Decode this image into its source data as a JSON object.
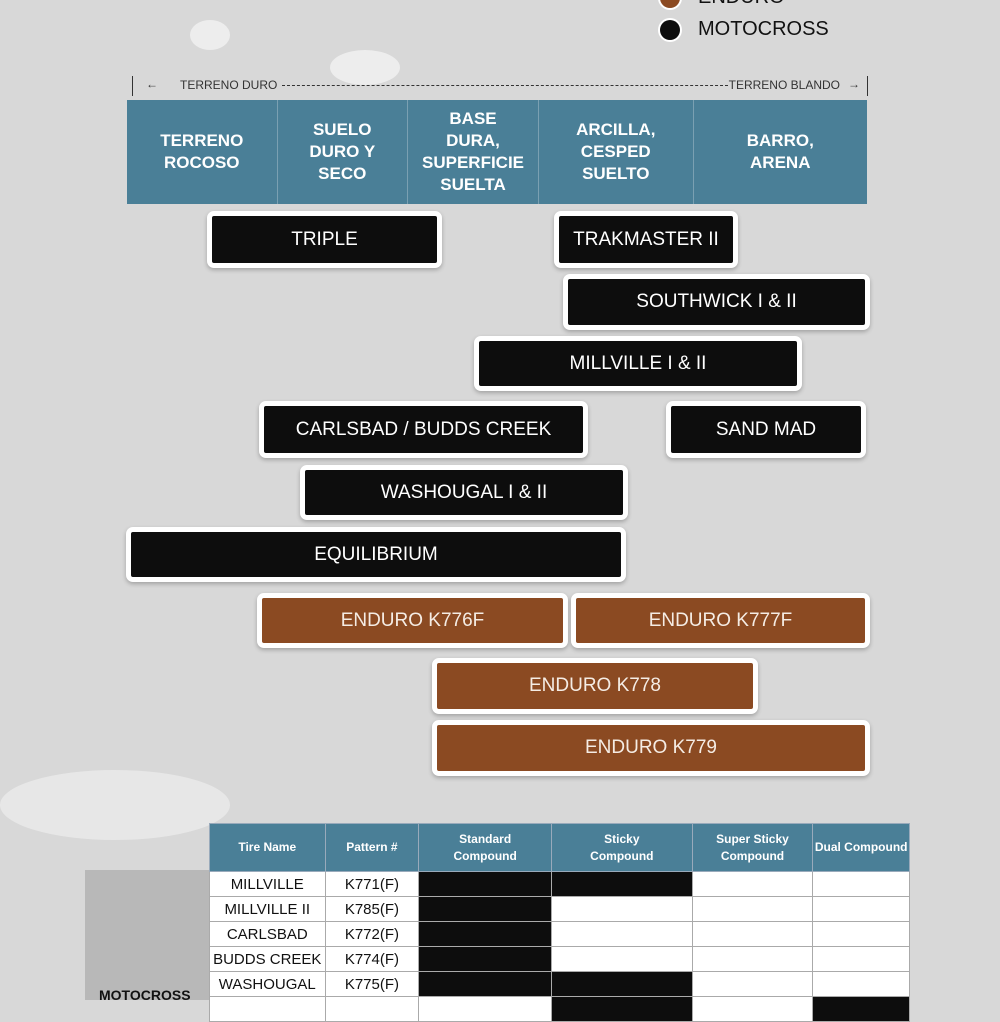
{
  "colors": {
    "header": "#4a7f97",
    "motocross": "#0d0d0d",
    "enduro": "#8b4a22",
    "background": "#d8d8d8"
  },
  "legend": [
    {
      "label": "ENDURO",
      "color": "#8b4a22"
    },
    {
      "label": "MOTOCROSS",
      "color": "#0d0d0d"
    }
  ],
  "scale": {
    "left_label": "TERRENO DURO",
    "right_label": "TERRENO BLANDO",
    "left_arrow": "←",
    "right_arrow": "→"
  },
  "terrains": [
    "TERRENO ROCOSO",
    "SUELO DURO Y SECO",
    "BASE DURA, SUPERFICIE SUELTA",
    "ARCILLA, CESPED SUELTO",
    "BARRO, ARENA"
  ],
  "tires": [
    {
      "label": "TRIPLE",
      "type": "motocross"
    },
    {
      "label": "TRAKMASTER II",
      "type": "motocross"
    },
    {
      "label": "SOUTHWICK I & II",
      "type": "motocross"
    },
    {
      "label": "MILLVILLE I & II",
      "type": "motocross"
    },
    {
      "label": "CARLSBAD / BUDDS CREEK",
      "type": "motocross"
    },
    {
      "label": "SAND MAD",
      "type": "motocross"
    },
    {
      "label": "WASHOUGAL I & II",
      "type": "motocross"
    },
    {
      "label": "EQUILIBRIUM",
      "type": "motocross"
    },
    {
      "label": "ENDURO K776F",
      "type": "enduro"
    },
    {
      "label": "ENDURO K777F",
      "type": "enduro"
    },
    {
      "label": "ENDURO K778",
      "type": "enduro"
    },
    {
      "label": "ENDURO K779",
      "type": "enduro"
    }
  ],
  "table": {
    "headers": [
      "Tire Name",
      "Pattern #",
      "Standard Compound",
      "Sticky Compound",
      "Super Sticky Compound",
      "Dual Compound"
    ],
    "group_label": "MOTOCROSS",
    "rows": [
      {
        "name": "MILLVILLE",
        "pattern": "K771(F)",
        "compounds": [
          true,
          true,
          false,
          false
        ]
      },
      {
        "name": "MILLVILLE II",
        "pattern": "K785(F)",
        "compounds": [
          true,
          false,
          false,
          false
        ]
      },
      {
        "name": "CARLSBAD",
        "pattern": "K772(F)",
        "compounds": [
          true,
          false,
          false,
          false
        ]
      },
      {
        "name": "BUDDS CREEK",
        "pattern": "K774(F)",
        "compounds": [
          true,
          false,
          false,
          false
        ]
      },
      {
        "name": "WASHOUGAL",
        "pattern": "K775(F)",
        "compounds": [
          true,
          true,
          false,
          false
        ]
      },
      {
        "name": "",
        "pattern": "",
        "compounds": [
          false,
          true,
          false,
          true
        ]
      }
    ]
  }
}
